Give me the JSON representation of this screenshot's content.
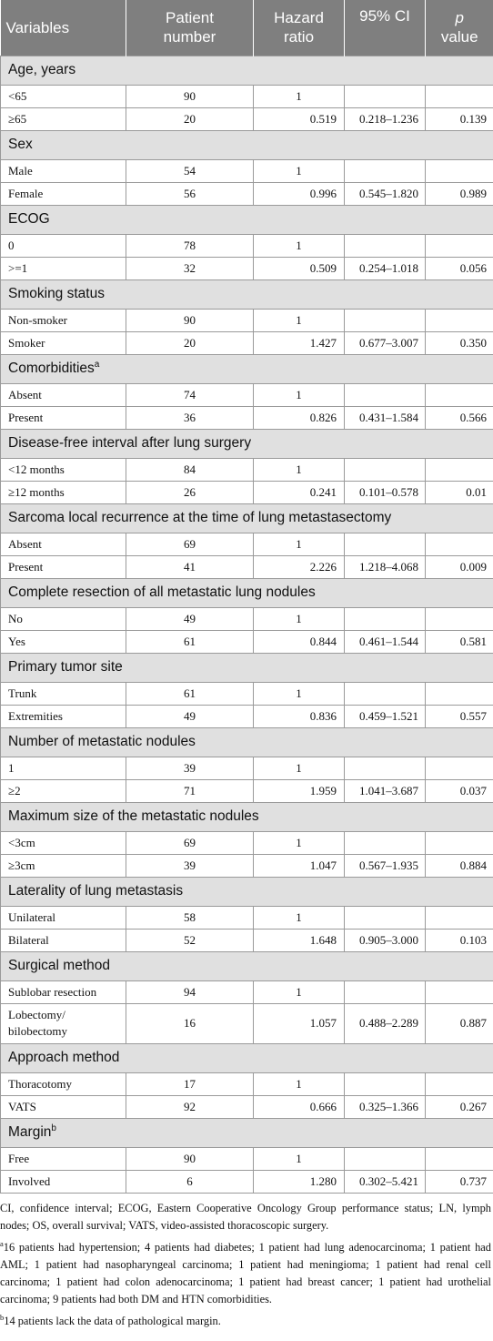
{
  "table": {
    "headers": {
      "variables": "Variables",
      "patient_number_line1": "Patient",
      "patient_number_line2": "number",
      "hazard_ratio_line1": "Hazard",
      "hazard_ratio_line2": "ratio",
      "ci": "95% CI",
      "p_value_line1": "p",
      "p_value_line2": "value"
    },
    "sections": [
      {
        "title": "Age, years",
        "sup": "",
        "rows": [
          {
            "label": "<65",
            "n": "90",
            "hr": "1",
            "ci": "",
            "p": ""
          },
          {
            "label": "≥65",
            "n": "20",
            "hr": "0.519",
            "ci": "0.218–1.236",
            "p": "0.139"
          }
        ]
      },
      {
        "title": "Sex",
        "sup": "",
        "rows": [
          {
            "label": "Male",
            "n": "54",
            "hr": "1",
            "ci": "",
            "p": ""
          },
          {
            "label": "Female",
            "n": "56",
            "hr": "0.996",
            "ci": "0.545–1.820",
            "p": "0.989"
          }
        ]
      },
      {
        "title": "ECOG",
        "sup": "",
        "rows": [
          {
            "label": "0",
            "n": "78",
            "hr": "1",
            "ci": "",
            "p": ""
          },
          {
            "label": ">=1",
            "n": "32",
            "hr": "0.509",
            "ci": "0.254–1.018",
            "p": "0.056"
          }
        ]
      },
      {
        "title": "Smoking status",
        "sup": "",
        "rows": [
          {
            "label": "Non-smoker",
            "n": "90",
            "hr": "1",
            "ci": "",
            "p": ""
          },
          {
            "label": "Smoker",
            "n": "20",
            "hr": "1.427",
            "ci": "0.677–3.007",
            "p": "0.350"
          }
        ]
      },
      {
        "title": "Comorbidities",
        "sup": "a",
        "rows": [
          {
            "label": "Absent",
            "n": "74",
            "hr": "1",
            "ci": "",
            "p": ""
          },
          {
            "label": "Present",
            "n": "36",
            "hr": "0.826",
            "ci": "0.431–1.584",
            "p": "0.566"
          }
        ]
      },
      {
        "title": "Disease-free interval after lung surgery",
        "sup": "",
        "rows": [
          {
            "label": "<12 months",
            "n": "84",
            "hr": "1",
            "ci": "",
            "p": ""
          },
          {
            "label": "≥12 months",
            "n": "26",
            "hr": "0.241",
            "ci": "0.101–0.578",
            "p": "0.01"
          }
        ]
      },
      {
        "title": "Sarcoma local recurrence at the time of lung metastasectomy",
        "sup": "",
        "rows": [
          {
            "label": "Absent",
            "n": "69",
            "hr": "1",
            "ci": "",
            "p": ""
          },
          {
            "label": "Present",
            "n": "41",
            "hr": "2.226",
            "ci": "1.218–4.068",
            "p": "0.009"
          }
        ]
      },
      {
        "title": "Complete resection of all metastatic lung nodules",
        "sup": "",
        "rows": [
          {
            "label": "No",
            "n": "49",
            "hr": "1",
            "ci": "",
            "p": ""
          },
          {
            "label": "Yes",
            "n": "61",
            "hr": "0.844",
            "ci": "0.461–1.544",
            "p": "0.581"
          }
        ]
      },
      {
        "title": "Primary tumor site",
        "sup": "",
        "rows": [
          {
            "label": "Trunk",
            "n": "61",
            "hr": "1",
            "ci": "",
            "p": ""
          },
          {
            "label": "Extremities",
            "n": "49",
            "hr": "0.836",
            "ci": "0.459–1.521",
            "p": "0.557"
          }
        ]
      },
      {
        "title": "Number of metastatic nodules",
        "sup": "",
        "rows": [
          {
            "label": "1",
            "n": "39",
            "hr": "1",
            "ci": "",
            "p": ""
          },
          {
            "label": "≥2",
            "n": "71",
            "hr": "1.959",
            "ci": "1.041–3.687",
            "p": "0.037"
          }
        ]
      },
      {
        "title": "Maximum size of the metastatic nodules",
        "sup": "",
        "rows": [
          {
            "label": "<3cm",
            "n": "69",
            "hr": "1",
            "ci": "",
            "p": ""
          },
          {
            "label": "≥3cm",
            "n": "39",
            "hr": "1.047",
            "ci": "0.567–1.935",
            "p": "0.884"
          }
        ]
      },
      {
        "title": "Laterality of lung metastasis",
        "sup": "",
        "rows": [
          {
            "label": "Unilateral",
            "n": "58",
            "hr": "1",
            "ci": "",
            "p": ""
          },
          {
            "label": "Bilateral",
            "n": "52",
            "hr": "1.648",
            "ci": "0.905–3.000",
            "p": "0.103"
          }
        ]
      },
      {
        "title": "Surgical method",
        "sup": "",
        "rows": [
          {
            "label": "Sublobar resection",
            "n": "94",
            "hr": "1",
            "ci": "",
            "p": ""
          },
          {
            "label": "Lobectomy/ bilobectomy",
            "n": "16",
            "hr": "1.057",
            "ci": "0.488–2.289",
            "p": "0.887",
            "tall": true
          }
        ]
      },
      {
        "title": "Approach method",
        "sup": "",
        "rows": [
          {
            "label": "Thoracotomy",
            "n": "17",
            "hr": "1",
            "ci": "",
            "p": ""
          },
          {
            "label": "VATS",
            "n": "92",
            "hr": "0.666",
            "ci": "0.325–1.366",
            "p": "0.267"
          }
        ]
      },
      {
        "title": "Margin",
        "sup": "b",
        "rows": [
          {
            "label": "Free",
            "n": "90",
            "hr": "1",
            "ci": "",
            "p": ""
          },
          {
            "label": "Involved",
            "n": "6",
            "hr": "1.280",
            "ci": "0.302–5.421",
            "p": "0.737"
          }
        ]
      }
    ]
  },
  "footnotes": {
    "abbreviations": "CI, confidence interval; ECOG, Eastern Cooperative Oncology Group performance status; LN, lymph nodes; OS, overall survival; VATS, video-assisted thoracoscopic surgery.",
    "a_marker": "a",
    "a_text": "16 patients had hypertension; 4 patients had diabetes; 1 patient had lung adenocarcinoma; 1 patient had AML; 1 patient had nasopharyngeal carcinoma; 1 patient had meningioma; 1 patient had renal cell carcinoma; 1 patient had colon adenocarcinoma; 1 patient had breast cancer; 1 patient had urothelial carcinoma; 9 patients had both DM and HTN comorbidities.",
    "b_marker": "b",
    "b_text": "14 patients lack the data of pathological margin."
  }
}
